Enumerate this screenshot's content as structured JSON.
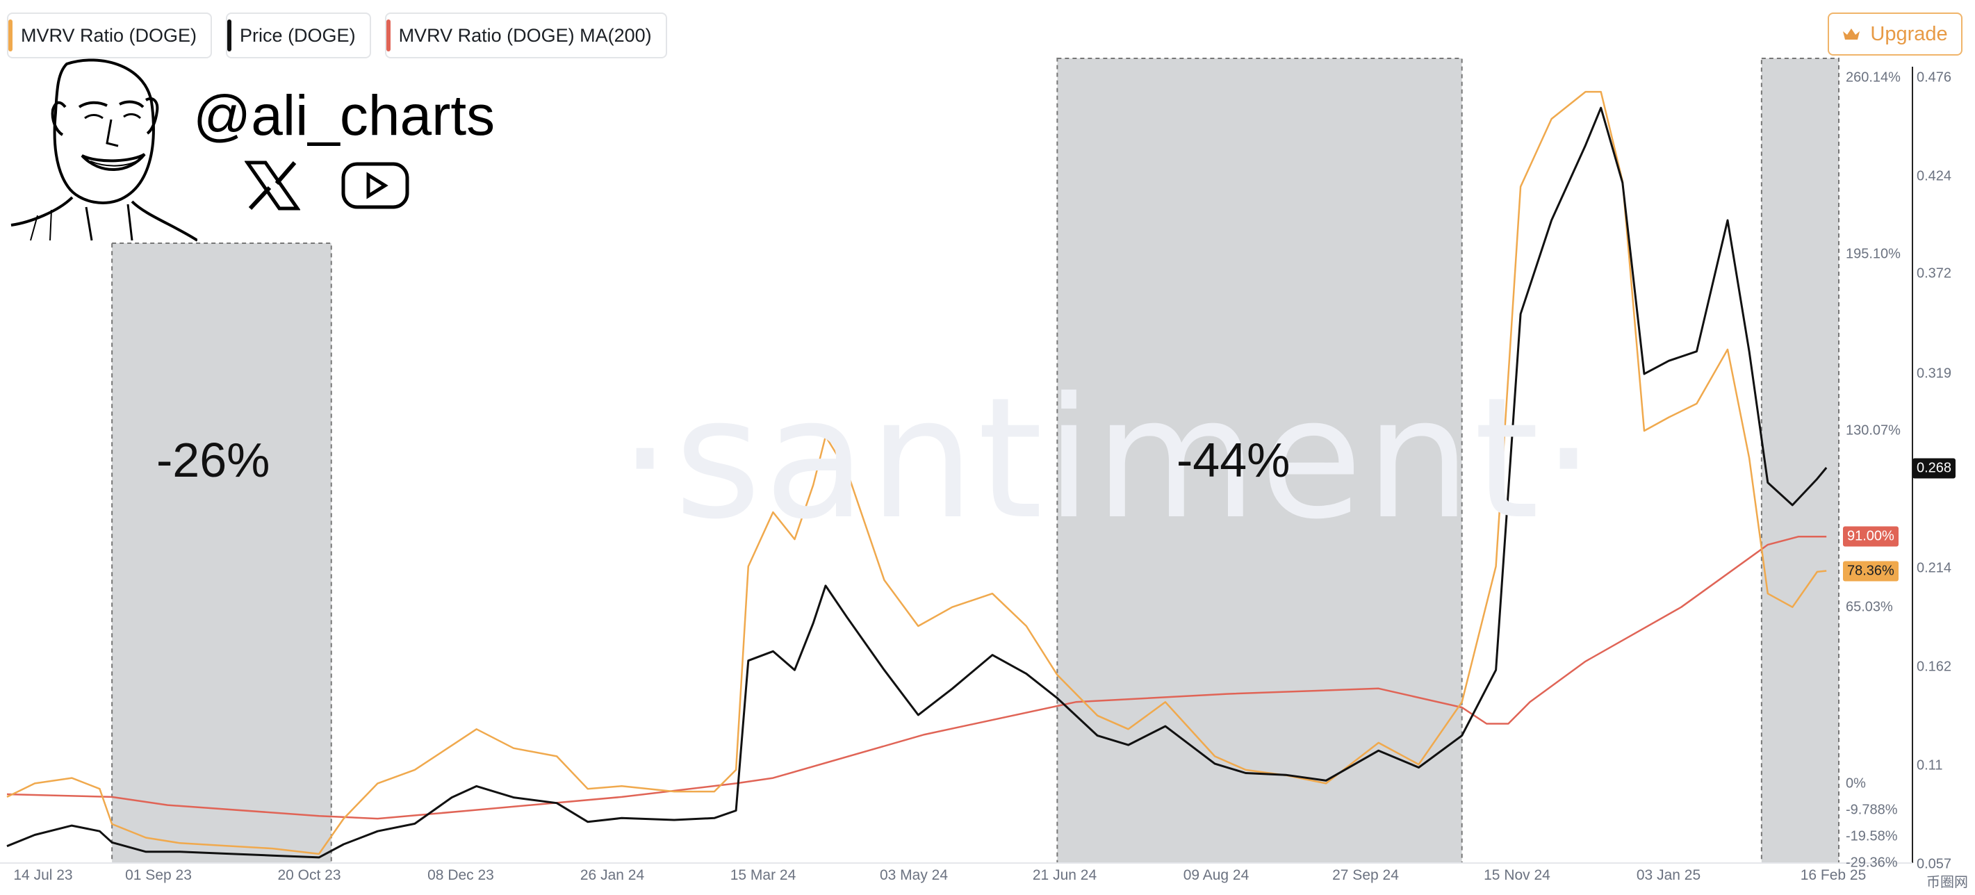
{
  "legend": [
    {
      "label": "MVRV Ratio (DOGE)",
      "color": "#f0a94d"
    },
    {
      "label": "Price (DOGE)",
      "color": "#111111"
    },
    {
      "label": "MVRV Ratio (DOGE) MA(200)",
      "color": "#e06456"
    }
  ],
  "upgrade_label": "Upgrade",
  "watermark": "·santiment·",
  "author_handle": "@ali_charts",
  "icons": [
    "x-logo-icon",
    "youtube-icon",
    "crown-icon"
  ],
  "site_logo": "币圈网",
  "annotations": [
    {
      "label": "-26%",
      "x_start": "14 Aug 23",
      "x_end": "24 Oct 23"
    },
    {
      "label": "-44%",
      "x_start": "15 Jun 24",
      "x_end": "24 Oct 24"
    },
    {
      "label": "",
      "x_start": "29 Jan 25",
      "x_end": "23 Feb 25"
    }
  ],
  "chart_data": {
    "type": "line",
    "x_axis": {
      "ticks": [
        "14 Jul 23",
        "01 Sep 23",
        "20 Oct 23",
        "08 Dec 23",
        "26 Jan 24",
        "15 Mar 24",
        "03 May 24",
        "21 Jun 24",
        "09 Aug 24",
        "27 Sep 24",
        "15 Nov 24",
        "03 Jan 25",
        "16 Feb 25"
      ],
      "range": [
        "11 Jul 23",
        "23 Feb 25"
      ]
    },
    "y_axis_mvrv": {
      "ticks": [
        "260.14%",
        "195.10%",
        "130.07%",
        "65.03%",
        "0%",
        "-9.788%",
        "-19.58%",
        "-29.36%"
      ],
      "range": [
        -29.36,
        260.14
      ],
      "unit": "%"
    },
    "y_axis_price": {
      "ticks": [
        "0.476",
        "0.424",
        "0.372",
        "0.319",
        "0.268",
        "0.214",
        "0.162",
        "0.11",
        "0.057"
      ],
      "range": [
        0.057,
        0.476
      ]
    },
    "last_values": {
      "price": "0.268",
      "mvrv_ma200": "91.00%",
      "mvrv": "78.36%"
    },
    "colors": {
      "mvrv": "#f0a94d",
      "price": "#111111",
      "ma200": "#e06456",
      "band": "#d4d6d8"
    },
    "grid": false,
    "legend_position": "top-left",
    "series": [
      {
        "name": "Price (DOGE)",
        "points": [
          [
            "11 Jul 23",
            0.066
          ],
          [
            "20 Jul 23",
            0.072
          ],
          [
            "1 Aug 23",
            0.077
          ],
          [
            "10 Aug 23",
            0.074
          ],
          [
            "14 Aug 23",
            0.068
          ],
          [
            "25 Aug 23",
            0.063
          ],
          [
            "5 Sep 23",
            0.063
          ],
          [
            "20 Sep 23",
            0.062
          ],
          [
            "5 Oct 23",
            0.061
          ],
          [
            "20 Oct 23",
            0.06
          ],
          [
            "28 Oct 23",
            0.067
          ],
          [
            "8 Nov 23",
            0.074
          ],
          [
            "20 Nov 23",
            0.078
          ],
          [
            "2 Dec 23",
            0.092
          ],
          [
            "10 Dec 23",
            0.098
          ],
          [
            "22 Dec 23",
            0.092
          ],
          [
            "5 Jan 24",
            0.089
          ],
          [
            "15 Jan 24",
            0.079
          ],
          [
            "26 Jan 24",
            0.081
          ],
          [
            "12 Feb 24",
            0.08
          ],
          [
            "25 Feb 24",
            0.081
          ],
          [
            "3 Mar 24",
            0.085
          ],
          [
            "7 Mar 24",
            0.165
          ],
          [
            "15 Mar 24",
            0.17
          ],
          [
            "22 Mar 24",
            0.16
          ],
          [
            "28 Mar 24",
            0.185
          ],
          [
            "1 Apr 24",
            0.205
          ],
          [
            "8 Apr 24",
            0.188
          ],
          [
            "20 Apr 24",
            0.16
          ],
          [
            "1 May 24",
            0.136
          ],
          [
            "12 May 24",
            0.15
          ],
          [
            "25 May 24",
            0.168
          ],
          [
            "5 Jun 24",
            0.158
          ],
          [
            "15 Jun 24",
            0.145
          ],
          [
            "28 Jun 24",
            0.125
          ],
          [
            "8 Jul 24",
            0.12
          ],
          [
            "20 Jul 24",
            0.13
          ],
          [
            "5 Aug 24",
            0.11
          ],
          [
            "15 Aug 24",
            0.105
          ],
          [
            "28 Aug 24",
            0.104
          ],
          [
            "10 Sep 24",
            0.101
          ],
          [
            "27 Sep 24",
            0.117
          ],
          [
            "10 Oct 24",
            0.108
          ],
          [
            "24 Oct 24",
            0.125
          ],
          [
            "4 Nov 24",
            0.16
          ],
          [
            "12 Nov 24",
            0.35
          ],
          [
            "22 Nov 24",
            0.4
          ],
          [
            "3 Dec 24",
            0.44
          ],
          [
            "8 Dec 24",
            0.46
          ],
          [
            "15 Dec 24",
            0.42
          ],
          [
            "22 Dec 24",
            0.318
          ],
          [
            "30 Dec 24",
            0.325
          ],
          [
            "8 Jan 25",
            0.33
          ],
          [
            "18 Jan 25",
            0.4
          ],
          [
            "25 Jan 25",
            0.33
          ],
          [
            "31 Jan 25",
            0.26
          ],
          [
            "8 Feb 25",
            0.248
          ],
          [
            "16 Feb 25",
            0.262
          ],
          [
            "19 Feb 25",
            0.268
          ]
        ]
      },
      {
        "name": "MVRV Ratio (DOGE)",
        "points": [
          [
            "11 Jul 23",
            -5
          ],
          [
            "20 Jul 23",
            0
          ],
          [
            "1 Aug 23",
            2
          ],
          [
            "10 Aug 23",
            -2
          ],
          [
            "14 Aug 23",
            -15
          ],
          [
            "25 Aug 23",
            -20
          ],
          [
            "5 Sep 23",
            -22
          ],
          [
            "20 Sep 23",
            -23
          ],
          [
            "5 Oct 23",
            -24
          ],
          [
            "20 Oct 23",
            -26
          ],
          [
            "28 Oct 23",
            -13
          ],
          [
            "8 Nov 23",
            0
          ],
          [
            "20 Nov 23",
            5
          ],
          [
            "2 Dec 23",
            14
          ],
          [
            "10 Dec 23",
            20
          ],
          [
            "22 Dec 23",
            13
          ],
          [
            "5 Jan 24",
            10
          ],
          [
            "15 Jan 24",
            -2
          ],
          [
            "26 Jan 24",
            -1
          ],
          [
            "12 Feb 24",
            -3
          ],
          [
            "25 Feb 24",
            -3
          ],
          [
            "3 Mar 24",
            5
          ],
          [
            "7 Mar 24",
            80
          ],
          [
            "15 Mar 24",
            100
          ],
          [
            "22 Mar 24",
            90
          ],
          [
            "28 Mar 24",
            110
          ],
          [
            "1 Apr 24",
            128
          ],
          [
            "8 Apr 24",
            115
          ],
          [
            "20 Apr 24",
            75
          ],
          [
            "1 May 24",
            58
          ],
          [
            "12 May 24",
            65
          ],
          [
            "25 May 24",
            70
          ],
          [
            "5 Jun 24",
            58
          ],
          [
            "15 Jun 24",
            40
          ],
          [
            "28 Jun 24",
            25
          ],
          [
            "8 Jul 24",
            20
          ],
          [
            "20 Jul 24",
            30
          ],
          [
            "5 Aug 24",
            10
          ],
          [
            "15 Aug 24",
            5
          ],
          [
            "28 Aug 24",
            3
          ],
          [
            "10 Sep 24",
            0
          ],
          [
            "27 Sep 24",
            15
          ],
          [
            "10 Oct 24",
            7
          ],
          [
            "24 Oct 24",
            30
          ],
          [
            "4 Nov 24",
            80
          ],
          [
            "12 Nov 24",
            220
          ],
          [
            "22 Nov 24",
            245
          ],
          [
            "3 Dec 24",
            255
          ],
          [
            "8 Dec 24",
            255
          ],
          [
            "15 Dec 24",
            222
          ],
          [
            "22 Dec 24",
            130
          ],
          [
            "30 Dec 24",
            135
          ],
          [
            "8 Jan 25",
            140
          ],
          [
            "18 Jan 25",
            160
          ],
          [
            "25 Jan 25",
            120
          ],
          [
            "31 Jan 25",
            70
          ],
          [
            "8 Feb 25",
            65
          ],
          [
            "16 Feb 25",
            78
          ],
          [
            "19 Feb 25",
            78.36
          ]
        ]
      },
      {
        "name": "MVRV Ratio (DOGE) MA(200)",
        "points": [
          [
            "11 Jul 23",
            -4
          ],
          [
            "14 Aug 23",
            -5
          ],
          [
            "1 Sep 23",
            -8
          ],
          [
            "20 Oct 23",
            -12
          ],
          [
            "8 Nov 23",
            -13
          ],
          [
            "8 Dec 23",
            -10
          ],
          [
            "26 Jan 24",
            -5
          ],
          [
            "3 Mar 24",
            0
          ],
          [
            "15 Mar 24",
            2
          ],
          [
            "3 May 24",
            18
          ],
          [
            "21 Jun 24",
            30
          ],
          [
            "9 Aug 24",
            33
          ],
          [
            "27 Sep 24",
            35
          ],
          [
            "24 Oct 24",
            28
          ],
          [
            "1 Nov 24",
            22
          ],
          [
            "8 Nov 24",
            22
          ],
          [
            "15 Nov 24",
            30
          ],
          [
            "3 Dec 24",
            45
          ],
          [
            "3 Jan 25",
            65
          ],
          [
            "31 Jan 25",
            88
          ],
          [
            "10 Feb 25",
            91
          ],
          [
            "19 Feb 25",
            91
          ]
        ]
      }
    ]
  }
}
